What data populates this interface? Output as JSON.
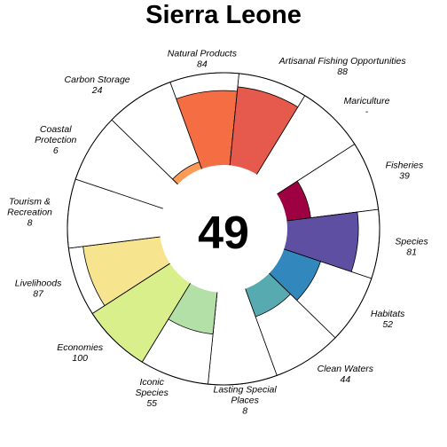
{
  "chart_data": {
    "type": "flower",
    "title": "Sierra Leone",
    "center_score": "49",
    "max_score": 100,
    "petals": [
      {
        "name": "Natural Products",
        "score": 84,
        "score_label": "84",
        "color": "#f46d43",
        "label_lines": [
          "Natural Products",
          "84"
        ]
      },
      {
        "name": "Artisanal Fishing Opportunities",
        "score": 88,
        "score_label": "88",
        "color": "#e55a4d",
        "label_lines": [
          "Artisanal Fishing Opportunities",
          "88"
        ]
      },
      {
        "name": "Mariculture",
        "score": null,
        "score_label": "-",
        "color": "#d53e4f",
        "label_lines": [
          "Mariculture",
          "-"
        ]
      },
      {
        "name": "Fisheries",
        "score": 39,
        "score_label": "39",
        "color": "#9e0142",
        "label_lines": [
          "Fisheries",
          "39"
        ]
      },
      {
        "name": "Species",
        "score": 81,
        "score_label": "81",
        "color": "#5e4fa2",
        "label_lines": [
          "Species",
          "81"
        ]
      },
      {
        "name": "Habitats",
        "score": 52,
        "score_label": "52",
        "color": "#3288bd",
        "label_lines": [
          "Habitats",
          "52"
        ]
      },
      {
        "name": "Clean Waters",
        "score": 44,
        "score_label": "44",
        "color": "#56aab0",
        "label_lines": [
          "Clean Waters",
          "44"
        ]
      },
      {
        "name": "Lasting Special Places",
        "score": 8,
        "score_label": "8",
        "color": "#66c2a5",
        "label_lines": [
          "Lasting Special",
          "Places",
          "8"
        ]
      },
      {
        "name": "Iconic Species",
        "score": 55,
        "score_label": "55",
        "color": "#b3e0a6",
        "label_lines": [
          "Iconic",
          "Species",
          "55"
        ]
      },
      {
        "name": "Economies",
        "score": 100,
        "score_label": "100",
        "color": "#d9ef8b",
        "label_lines": [
          "Economies",
          "100"
        ]
      },
      {
        "name": "Livelihoods",
        "score": 87,
        "score_label": "87",
        "color": "#f7e48f",
        "label_lines": [
          "Livelihoods",
          "87"
        ]
      },
      {
        "name": "Tourism & Recreation",
        "score": 8,
        "score_label": "8",
        "color": "#fdbf6f",
        "label_lines": [
          "Tourism &",
          "Recreation",
          "8"
        ]
      },
      {
        "name": "Coastal Protection",
        "score": 6,
        "score_label": "6",
        "color": "#fdae61",
        "label_lines": [
          "Coastal",
          "Protection",
          "6"
        ]
      },
      {
        "name": "Carbon Storage",
        "score": 24,
        "score_label": "24",
        "color": "#fc9a56",
        "label_lines": [
          "Carbon Storage",
          "24"
        ]
      }
    ]
  }
}
